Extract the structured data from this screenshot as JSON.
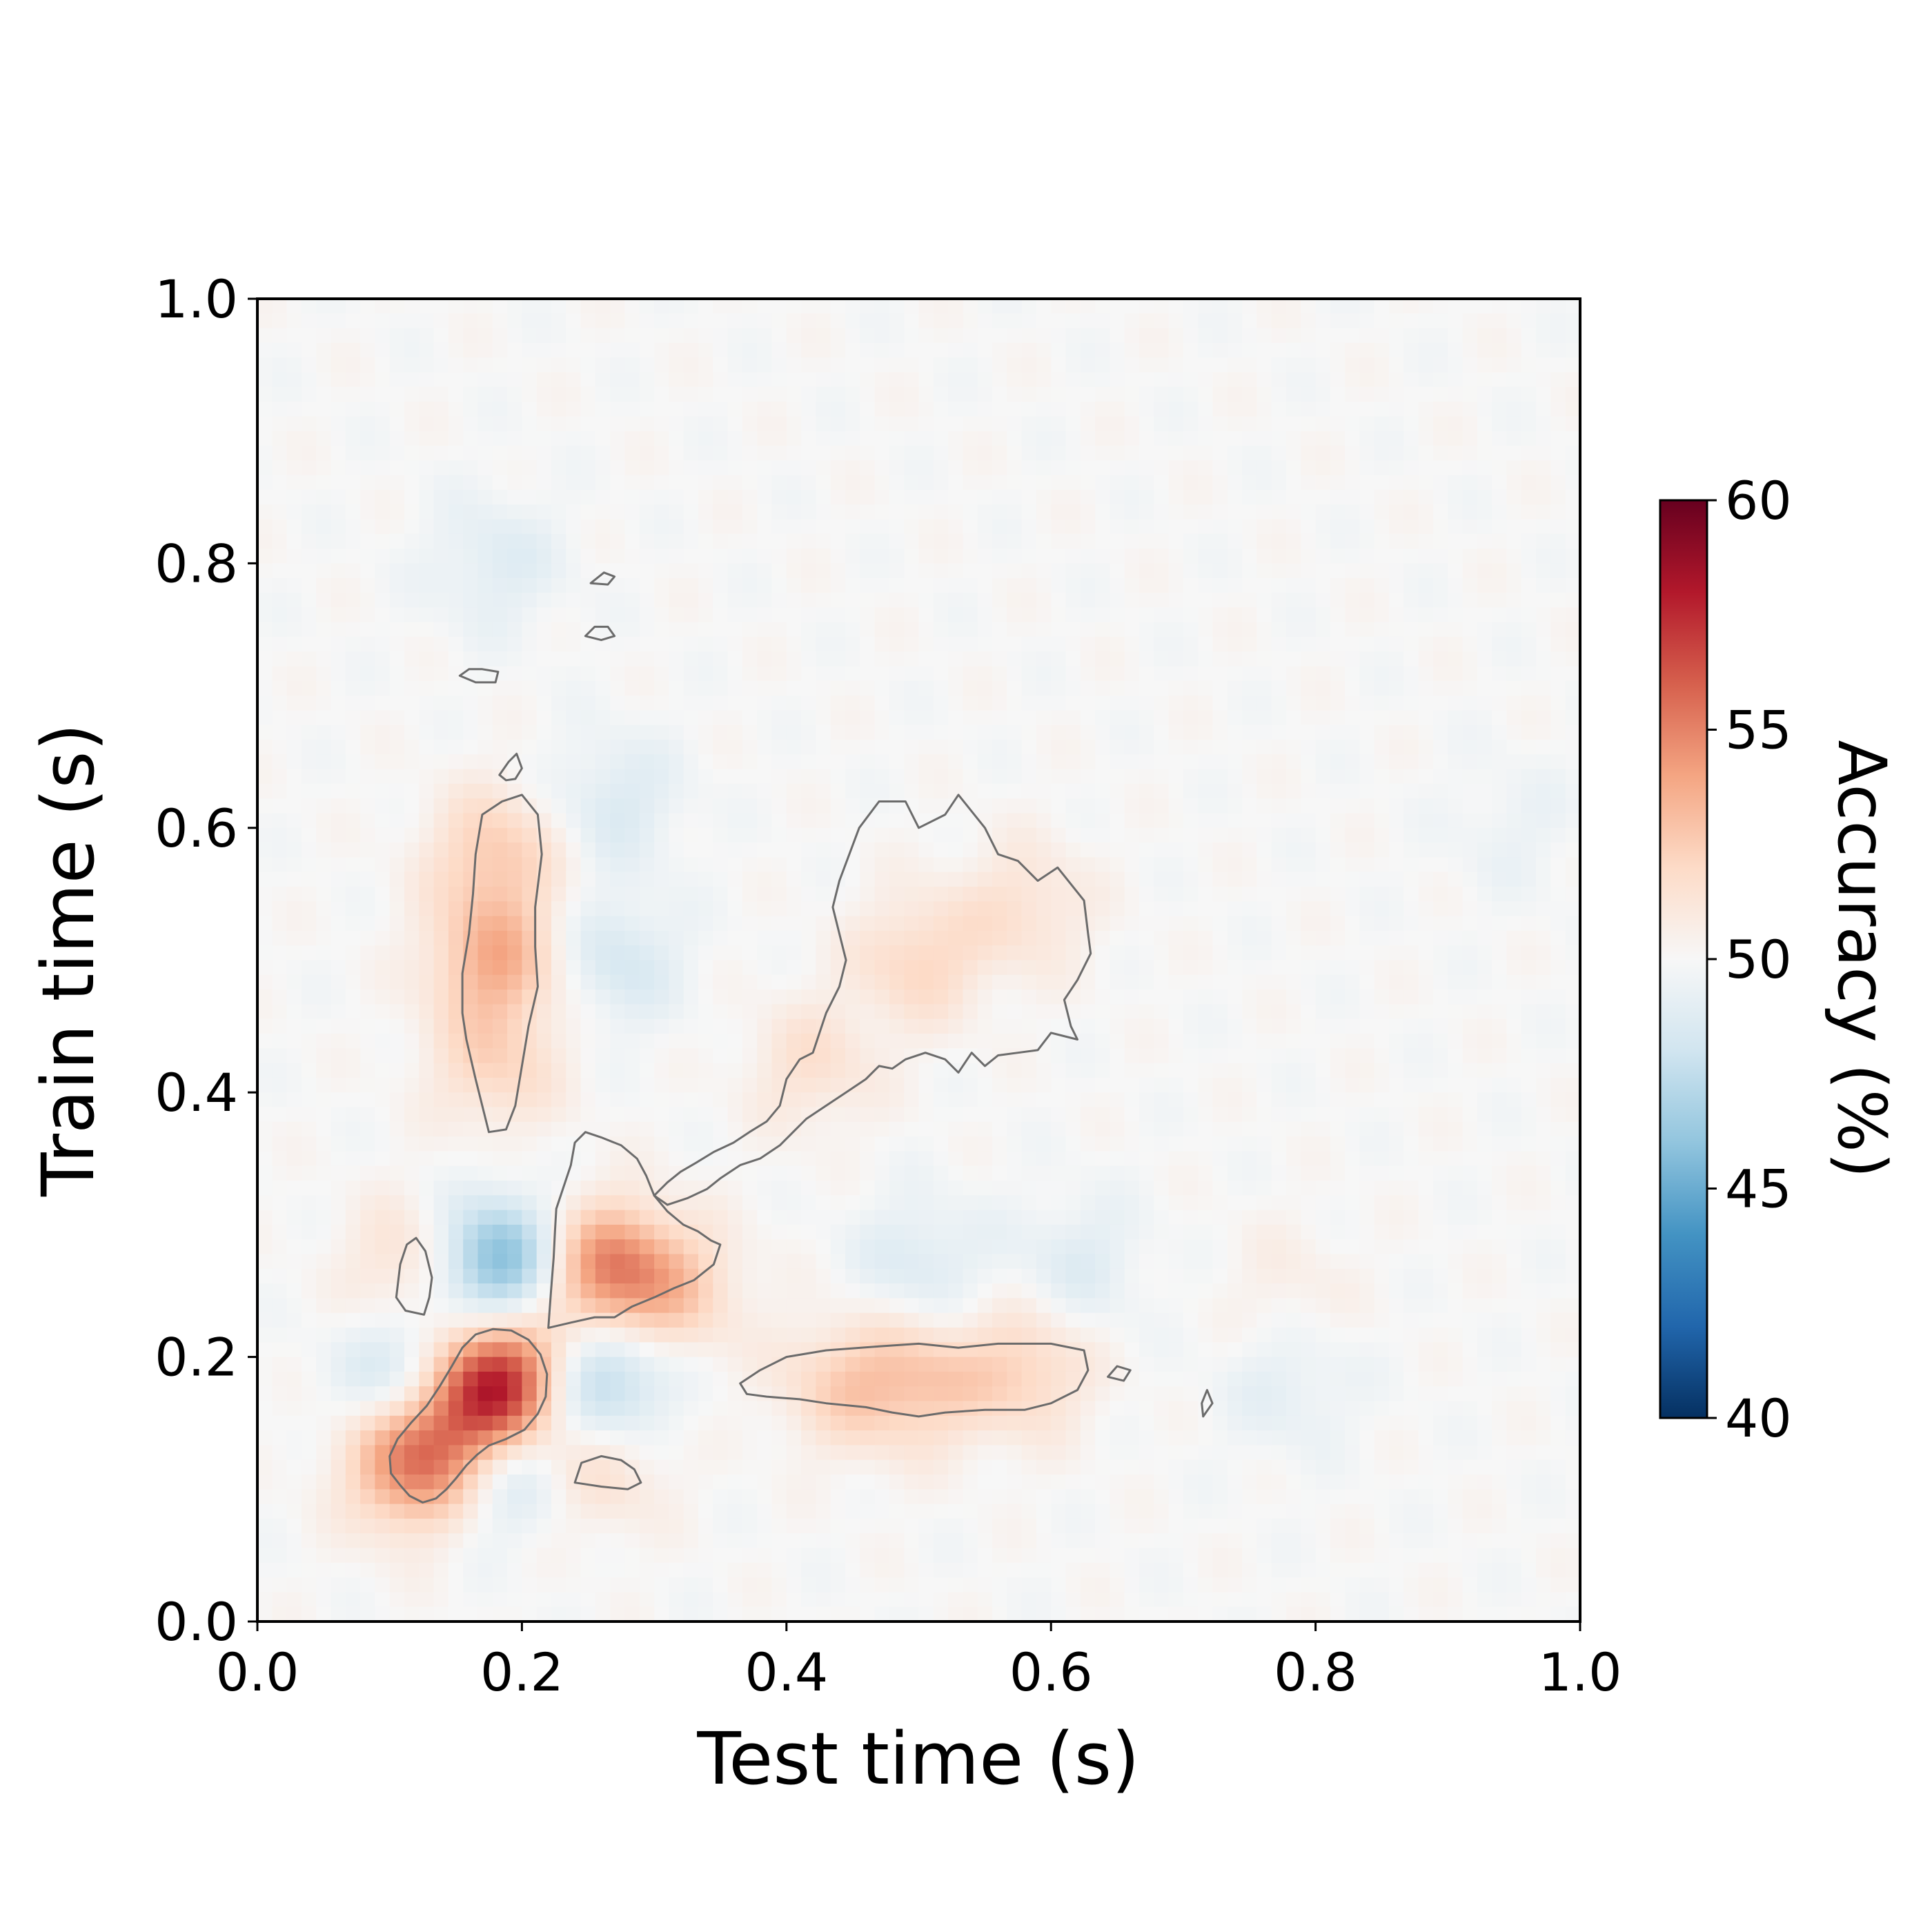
{
  "chart_data": {
    "type": "heatmap",
    "title": "",
    "xlabel": "Test time (s)",
    "ylabel": "Train time (s)",
    "xlim": [
      0.0,
      1.0
    ],
    "ylim": [
      0.0,
      1.0
    ],
    "xticks": [
      "0.0",
      "0.2",
      "0.4",
      "0.6",
      "0.8",
      "1.0"
    ],
    "yticks": [
      "0.0",
      "0.2",
      "0.4",
      "0.6",
      "0.8",
      "1.0"
    ],
    "xtick_values": [
      0.0,
      0.2,
      0.4,
      0.6,
      0.8,
      1.0
    ],
    "ytick_values": [
      0.0,
      0.2,
      0.4,
      0.6,
      0.8,
      1.0
    ],
    "colormap": "RdBu_r",
    "colorbar": {
      "label": "Accuracy (%)",
      "range": [
        40,
        60
      ],
      "ticks": [
        "40",
        "45",
        "50",
        "55",
        "60"
      ],
      "tick_values": [
        40,
        45,
        50,
        55,
        60
      ],
      "color_stops": [
        "#053061",
        "#2166ac",
        "#4393c3",
        "#92c5de",
        "#d1e5f0",
        "#f7f7f7",
        "#fddbc7",
        "#f4a582",
        "#d6604d",
        "#b2182b",
        "#67001f"
      ]
    },
    "baseline_accuracy": 50,
    "grid": false,
    "contour_color": "#6b6b6b",
    "blobs": [
      {
        "test_time": 0.18,
        "train_time": 0.18,
        "accuracy": 58.5
      },
      {
        "test_time": 0.14,
        "train_time": 0.14,
        "accuracy": 54.5
      },
      {
        "test_time": 0.115,
        "train_time": 0.115,
        "accuracy": 53.5
      },
      {
        "test_time": 0.265,
        "train_time": 0.265,
        "accuracy": 55.0
      },
      {
        "test_time": 0.32,
        "train_time": 0.25,
        "accuracy": 52.0
      },
      {
        "test_time": 0.18,
        "train_time": 0.5,
        "accuracy": 53.5
      },
      {
        "test_time": 0.18,
        "train_time": 0.58,
        "accuracy": 52.5
      },
      {
        "test_time": 0.18,
        "train_time": 0.42,
        "accuracy": 52.0
      },
      {
        "test_time": 0.44,
        "train_time": 0.18,
        "accuracy": 52.0
      },
      {
        "test_time": 0.5,
        "train_time": 0.18,
        "accuracy": 52.5
      },
      {
        "test_time": 0.58,
        "train_time": 0.19,
        "accuracy": 52.2
      },
      {
        "test_time": 0.5,
        "train_time": 0.5,
        "accuracy": 52.0
      },
      {
        "test_time": 0.42,
        "train_time": 0.42,
        "accuracy": 51.5
      },
      {
        "test_time": 0.58,
        "train_time": 0.54,
        "accuracy": 51.5
      },
      {
        "test_time": 0.26,
        "train_time": 0.12,
        "accuracy": 51.8
      },
      {
        "test_time": 0.12,
        "train_time": 0.27,
        "accuracy": 52.0
      },
      {
        "test_time": 0.18,
        "train_time": 0.27,
        "accuracy": 45.0
      },
      {
        "test_time": 0.18,
        "train_time": 0.12,
        "accuracy": 47.0
      },
      {
        "test_time": 0.12,
        "train_time": 0.18,
        "accuracy": 46.5
      },
      {
        "test_time": 0.26,
        "train_time": 0.18,
        "accuracy": 46.5
      },
      {
        "test_time": 0.27,
        "train_time": 0.5,
        "accuracy": 48.3
      },
      {
        "test_time": 0.27,
        "train_time": 0.62,
        "accuracy": 48.6
      },
      {
        "test_time": 0.18,
        "train_time": 0.8,
        "accuracy": 48.8
      },
      {
        "test_time": 0.5,
        "train_time": 0.27,
        "accuracy": 48.6
      },
      {
        "test_time": 0.62,
        "train_time": 0.27,
        "accuracy": 48.8
      },
      {
        "test_time": 0.78,
        "train_time": 0.18,
        "accuracy": 49.0
      },
      {
        "test_time": 0.78,
        "train_time": 0.25,
        "accuracy": 50.7
      },
      {
        "test_time": 0.95,
        "train_time": 0.6,
        "accuracy": 49.4
      }
    ],
    "significance_contours": [
      [
        [
          0.101,
          0.112
        ],
        [
          0.108,
          0.103
        ],
        [
          0.115,
          0.095
        ],
        [
          0.125,
          0.09
        ],
        [
          0.135,
          0.093
        ],
        [
          0.143,
          0.1
        ],
        [
          0.15,
          0.108
        ],
        [
          0.158,
          0.118
        ],
        [
          0.166,
          0.126
        ],
        [
          0.175,
          0.133
        ],
        [
          0.188,
          0.138
        ],
        [
          0.202,
          0.145
        ],
        [
          0.212,
          0.157
        ],
        [
          0.218,
          0.17
        ],
        [
          0.219,
          0.187
        ],
        [
          0.214,
          0.202
        ],
        [
          0.205,
          0.213
        ],
        [
          0.192,
          0.22
        ],
        [
          0.178,
          0.221
        ],
        [
          0.165,
          0.217
        ],
        [
          0.155,
          0.207
        ],
        [
          0.147,
          0.193
        ],
        [
          0.138,
          0.178
        ],
        [
          0.128,
          0.163
        ],
        [
          0.116,
          0.15
        ],
        [
          0.106,
          0.138
        ],
        [
          0.1,
          0.125
        ]
      ],
      [
        [
          0.22,
          0.222
        ],
        [
          0.237,
          0.226
        ],
        [
          0.255,
          0.23
        ],
        [
          0.27,
          0.23
        ],
        [
          0.283,
          0.238
        ],
        [
          0.3,
          0.245
        ],
        [
          0.315,
          0.252
        ],
        [
          0.33,
          0.258
        ],
        [
          0.345,
          0.27
        ],
        [
          0.35,
          0.285
        ],
        [
          0.343,
          0.288
        ],
        [
          0.333,
          0.295
        ],
        [
          0.322,
          0.3
        ],
        [
          0.31,
          0.31
        ],
        [
          0.3,
          0.322
        ],
        [
          0.294,
          0.337
        ],
        [
          0.287,
          0.35
        ],
        [
          0.275,
          0.36
        ],
        [
          0.26,
          0.366
        ],
        [
          0.248,
          0.37
        ],
        [
          0.24,
          0.362
        ],
        [
          0.237,
          0.345
        ],
        [
          0.232,
          0.33
        ],
        [
          0.226,
          0.312
        ],
        [
          0.225,
          0.295
        ],
        [
          0.224,
          0.275
        ],
        [
          0.222,
          0.25
        ]
      ],
      [
        [
          0.3,
          0.322
        ],
        [
          0.31,
          0.332
        ],
        [
          0.32,
          0.34
        ],
        [
          0.332,
          0.347
        ],
        [
          0.345,
          0.355
        ],
        [
          0.36,
          0.362
        ],
        [
          0.372,
          0.37
        ],
        [
          0.385,
          0.378
        ],
        [
          0.395,
          0.39
        ],
        [
          0.4,
          0.41
        ],
        [
          0.41,
          0.425
        ],
        [
          0.42,
          0.43
        ],
        [
          0.425,
          0.445
        ],
        [
          0.43,
          0.46
        ],
        [
          0.44,
          0.48
        ],
        [
          0.445,
          0.5
        ],
        [
          0.44,
          0.52
        ],
        [
          0.435,
          0.54
        ],
        [
          0.44,
          0.56
        ],
        [
          0.455,
          0.6
        ],
        [
          0.47,
          0.62
        ],
        [
          0.49,
          0.62
        ],
        [
          0.5,
          0.6
        ],
        [
          0.52,
          0.61
        ],
        [
          0.53,
          0.625
        ],
        [
          0.55,
          0.6
        ],
        [
          0.56,
          0.58
        ],
        [
          0.575,
          0.575
        ],
        [
          0.59,
          0.56
        ],
        [
          0.605,
          0.57
        ],
        [
          0.625,
          0.545
        ],
        [
          0.628,
          0.52
        ],
        [
          0.63,
          0.505
        ],
        [
          0.62,
          0.485
        ],
        [
          0.61,
          0.47
        ],
        [
          0.615,
          0.45
        ],
        [
          0.62,
          0.44
        ],
        [
          0.6,
          0.445
        ],
        [
          0.59,
          0.432
        ],
        [
          0.575,
          0.43
        ],
        [
          0.56,
          0.428
        ],
        [
          0.55,
          0.42
        ],
        [
          0.54,
          0.43
        ],
        [
          0.53,
          0.415
        ],
        [
          0.52,
          0.425
        ],
        [
          0.505,
          0.43
        ],
        [
          0.49,
          0.425
        ],
        [
          0.48,
          0.418
        ],
        [
          0.47,
          0.42
        ],
        [
          0.46,
          0.41
        ],
        [
          0.445,
          0.4
        ],
        [
          0.43,
          0.39
        ],
        [
          0.415,
          0.38
        ],
        [
          0.405,
          0.37
        ],
        [
          0.395,
          0.36
        ],
        [
          0.38,
          0.35
        ],
        [
          0.365,
          0.345
        ],
        [
          0.35,
          0.335
        ],
        [
          0.34,
          0.327
        ],
        [
          0.325,
          0.32
        ],
        [
          0.31,
          0.315
        ]
      ],
      [
        [
          0.175,
          0.37
        ],
        [
          0.188,
          0.372
        ],
        [
          0.195,
          0.39
        ],
        [
          0.2,
          0.42
        ],
        [
          0.205,
          0.45
        ],
        [
          0.212,
          0.48
        ],
        [
          0.21,
          0.51
        ],
        [
          0.21,
          0.54
        ],
        [
          0.215,
          0.58
        ],
        [
          0.212,
          0.61
        ],
        [
          0.2,
          0.625
        ],
        [
          0.185,
          0.62
        ],
        [
          0.17,
          0.61
        ],
        [
          0.165,
          0.58
        ],
        [
          0.163,
          0.55
        ],
        [
          0.16,
          0.52
        ],
        [
          0.155,
          0.49
        ],
        [
          0.155,
          0.46
        ],
        [
          0.158,
          0.44
        ],
        [
          0.165,
          0.41
        ],
        [
          0.17,
          0.39
        ]
      ],
      [
        [
          0.365,
          0.18
        ],
        [
          0.38,
          0.19
        ],
        [
          0.4,
          0.2
        ],
        [
          0.43,
          0.205
        ],
        [
          0.47,
          0.208
        ],
        [
          0.5,
          0.21
        ],
        [
          0.53,
          0.207
        ],
        [
          0.56,
          0.21
        ],
        [
          0.6,
          0.21
        ],
        [
          0.625,
          0.205
        ],
        [
          0.628,
          0.19
        ],
        [
          0.62,
          0.175
        ],
        [
          0.6,
          0.165
        ],
        [
          0.58,
          0.16
        ],
        [
          0.55,
          0.16
        ],
        [
          0.52,
          0.158
        ],
        [
          0.5,
          0.155
        ],
        [
          0.48,
          0.158
        ],
        [
          0.46,
          0.162
        ],
        [
          0.43,
          0.165
        ],
        [
          0.41,
          0.168
        ],
        [
          0.385,
          0.17
        ],
        [
          0.37,
          0.172
        ]
      ],
      [
        [
          0.105,
          0.245
        ],
        [
          0.112,
          0.235
        ],
        [
          0.126,
          0.232
        ],
        [
          0.13,
          0.245
        ],
        [
          0.132,
          0.26
        ],
        [
          0.127,
          0.28
        ],
        [
          0.12,
          0.29
        ],
        [
          0.113,
          0.285
        ],
        [
          0.108,
          0.27
        ]
      ],
      [
        [
          0.24,
          0.105
        ],
        [
          0.26,
          0.102
        ],
        [
          0.28,
          0.1
        ],
        [
          0.29,
          0.105
        ],
        [
          0.285,
          0.115
        ],
        [
          0.275,
          0.122
        ],
        [
          0.26,
          0.125
        ],
        [
          0.245,
          0.12
        ]
      ],
      [
        [
          0.183,
          0.64
        ],
        [
          0.19,
          0.65
        ],
        [
          0.196,
          0.656
        ],
        [
          0.2,
          0.645
        ],
        [
          0.195,
          0.637
        ],
        [
          0.188,
          0.636
        ]
      ],
      [
        [
          0.153,
          0.715
        ],
        [
          0.165,
          0.71
        ],
        [
          0.18,
          0.71
        ],
        [
          0.182,
          0.718
        ],
        [
          0.17,
          0.72
        ],
        [
          0.16,
          0.72
        ]
      ],
      [
        [
          0.248,
          0.745
        ],
        [
          0.26,
          0.742
        ],
        [
          0.27,
          0.745
        ],
        [
          0.265,
          0.752
        ],
        [
          0.255,
          0.752
        ]
      ],
      [
        [
          0.252,
          0.785
        ],
        [
          0.262,
          0.793
        ],
        [
          0.27,
          0.79
        ],
        [
          0.265,
          0.784
        ]
      ],
      [
        [
          0.643,
          0.185
        ],
        [
          0.655,
          0.182
        ],
        [
          0.66,
          0.19
        ],
        [
          0.65,
          0.193
        ]
      ],
      [
        [
          0.715,
          0.155
        ],
        [
          0.722,
          0.165
        ],
        [
          0.718,
          0.175
        ],
        [
          0.714,
          0.165
        ]
      ]
    ]
  }
}
